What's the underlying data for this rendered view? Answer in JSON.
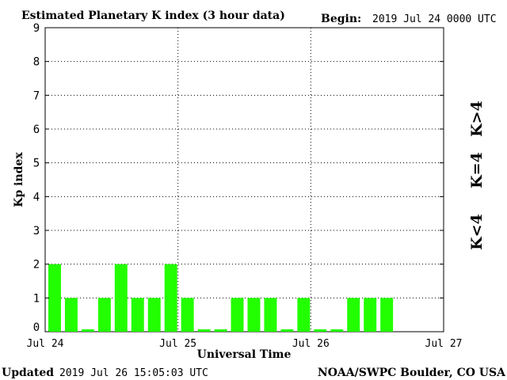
{
  "header": {
    "title": "Estimated Planetary K index (3 hour data)",
    "begin_label": "Begin:",
    "begin_value": "2019 Jul 24 0000 UTC"
  },
  "footer": {
    "updated_label": "Updated",
    "updated_value": "2019 Jul 26 15:05:03 UTC",
    "source": "NOAA/SWPC Boulder, CO USA"
  },
  "legend": {
    "high": "K>4",
    "equal": "K=4",
    "low": "K<4"
  },
  "colors": {
    "low": "#22ff00",
    "equal": "#ffcc00",
    "high": "#ff2200",
    "grid": "#000000"
  },
  "chart_data": {
    "type": "bar",
    "xlabel": "Universal Time",
    "ylabel": "Kp index",
    "ylim": [
      0,
      9
    ],
    "yticks": [
      "0",
      "1",
      "2",
      "3",
      "4",
      "5",
      "6",
      "7",
      "8",
      "9"
    ],
    "xticks": [
      "Jul 24",
      "Jul 25",
      "Jul 26",
      "Jul 27"
    ],
    "interval_hours": 3,
    "values": [
      2,
      1,
      0.07,
      1,
      2,
      1,
      1,
      2,
      1,
      0.07,
      0.07,
      1,
      1,
      1,
      0.07,
      1,
      0.07,
      0.07,
      1,
      1,
      1
    ],
    "grid": true,
    "grid_style": "dotted"
  }
}
